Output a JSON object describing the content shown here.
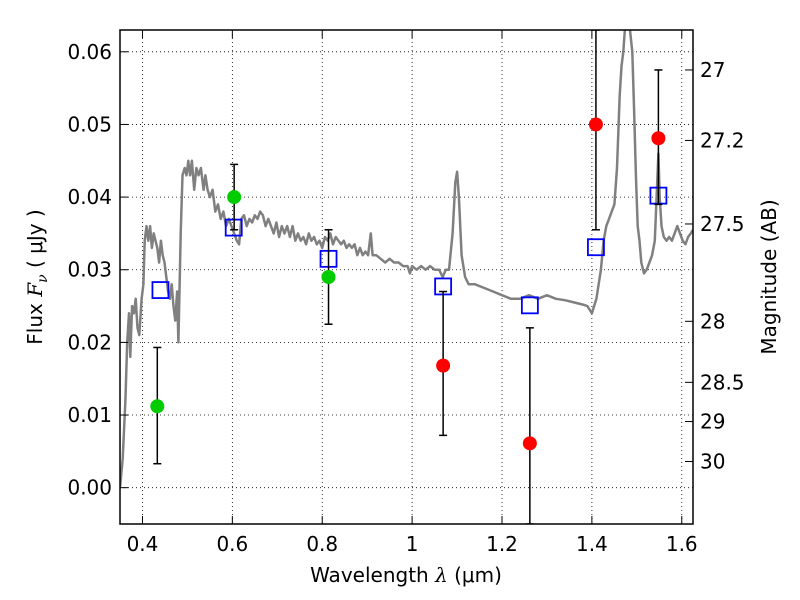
{
  "chart_data": {
    "type": "scatter",
    "xlabel": "Wavelength  λ (μm)",
    "xlabel_parts": {
      "prefix": "Wavelength  ",
      "symbol": "λ",
      "unit": " (μm)"
    },
    "ylabel": "Flux  Fν  ( μJy )",
    "ylabel_parts": {
      "prefix": "Flux  ",
      "symbol": "F",
      "sub": "ν",
      "unit": "  ( μJy )"
    },
    "y2label": "Magnitude (AB)",
    "xlim": [
      0.35,
      1.625
    ],
    "ylim": [
      -0.005,
      0.063
    ],
    "grid": true,
    "grid_style": "dotted",
    "x_ticks": [
      {
        "value": 0.4,
        "label": "0.4"
      },
      {
        "value": 0.6,
        "label": "0.6"
      },
      {
        "value": 0.8,
        "label": "0.8"
      },
      {
        "value": 1.0,
        "label": "1"
      },
      {
        "value": 1.2,
        "label": "1.2"
      },
      {
        "value": 1.4,
        "label": "1.4"
      },
      {
        "value": 1.6,
        "label": "1.6"
      }
    ],
    "y_ticks": [
      {
        "value": 0.0,
        "label": "0.00"
      },
      {
        "value": 0.01,
        "label": "0.01"
      },
      {
        "value": 0.02,
        "label": "0.02"
      },
      {
        "value": 0.03,
        "label": "0.03"
      },
      {
        "value": 0.04,
        "label": "0.04"
      },
      {
        "value": 0.05,
        "label": "0.05"
      },
      {
        "value": 0.06,
        "label": "0.06"
      }
    ],
    "y2_ticks": [
      {
        "label": "27",
        "flux": 0.0575
      },
      {
        "label": "27.2",
        "flux": 0.0478
      },
      {
        "label": "27.5",
        "flux": 0.0363
      },
      {
        "label": "28",
        "flux": 0.0229
      },
      {
        "label": "28.5",
        "flux": 0.0145
      },
      {
        "label": "29",
        "flux": 0.0091
      },
      {
        "label": "30",
        "flux": 0.0036
      }
    ],
    "series": [
      {
        "type": "line",
        "color": "#808080",
        "points": [
          [
            0.35,
            0.0
          ],
          [
            0.356,
            0.004
          ],
          [
            0.362,
            0.012
          ],
          [
            0.366,
            0.02
          ],
          [
            0.37,
            0.024
          ],
          [
            0.373,
            0.018
          ],
          [
            0.377,
            0.025
          ],
          [
            0.381,
            0.024
          ],
          [
            0.385,
            0.026
          ],
          [
            0.389,
            0.022
          ],
          [
            0.393,
            0.021
          ],
          [
            0.398,
            0.026
          ],
          [
            0.402,
            0.028
          ],
          [
            0.405,
            0.034
          ],
          [
            0.409,
            0.036
          ],
          [
            0.413,
            0.034
          ],
          [
            0.417,
            0.036
          ],
          [
            0.421,
            0.033
          ],
          [
            0.425,
            0.035
          ],
          [
            0.429,
            0.034
          ],
          [
            0.433,
            0.033
          ],
          [
            0.437,
            0.031
          ],
          [
            0.441,
            0.034
          ],
          [
            0.445,
            0.032
          ],
          [
            0.449,
            0.031
          ],
          [
            0.453,
            0.029
          ],
          [
            0.457,
            0.027
          ],
          [
            0.461,
            0.026
          ],
          [
            0.465,
            0.028
          ],
          [
            0.469,
            0.025
          ],
          [
            0.473,
            0.023
          ],
          [
            0.477,
            0.027
          ],
          [
            0.48,
            0.02
          ],
          [
            0.485,
            0.035
          ],
          [
            0.489,
            0.043
          ],
          [
            0.494,
            0.044
          ],
          [
            0.498,
            0.043
          ],
          [
            0.502,
            0.045
          ],
          [
            0.506,
            0.043
          ],
          [
            0.51,
            0.045
          ],
          [
            0.515,
            0.041
          ],
          [
            0.52,
            0.044
          ],
          [
            0.525,
            0.043
          ],
          [
            0.53,
            0.044
          ],
          [
            0.536,
            0.041
          ],
          [
            0.54,
            0.043
          ],
          [
            0.545,
            0.041
          ],
          [
            0.55,
            0.04
          ],
          [
            0.556,
            0.041
          ],
          [
            0.562,
            0.038
          ],
          [
            0.568,
            0.039
          ],
          [
            0.574,
            0.037
          ],
          [
            0.58,
            0.038
          ],
          [
            0.586,
            0.036
          ],
          [
            0.592,
            0.037
          ],
          [
            0.598,
            0.036
          ],
          [
            0.604,
            0.035
          ],
          [
            0.61,
            0.034
          ],
          [
            0.615,
            0.0335
          ],
          [
            0.62,
            0.037
          ],
          [
            0.626,
            0.0375
          ],
          [
            0.632,
            0.036
          ],
          [
            0.638,
            0.037
          ],
          [
            0.644,
            0.0365
          ],
          [
            0.65,
            0.0375
          ],
          [
            0.656,
            0.037
          ],
          [
            0.662,
            0.038
          ],
          [
            0.668,
            0.0375
          ],
          [
            0.674,
            0.036
          ],
          [
            0.68,
            0.037
          ],
          [
            0.686,
            0.036
          ],
          [
            0.692,
            0.035
          ],
          [
            0.698,
            0.0365
          ],
          [
            0.704,
            0.0345
          ],
          [
            0.71,
            0.036
          ],
          [
            0.716,
            0.035
          ],
          [
            0.722,
            0.036
          ],
          [
            0.728,
            0.0345
          ],
          [
            0.734,
            0.036
          ],
          [
            0.74,
            0.034
          ],
          [
            0.746,
            0.035
          ],
          [
            0.752,
            0.034
          ],
          [
            0.758,
            0.0345
          ],
          [
            0.764,
            0.0335
          ],
          [
            0.77,
            0.035
          ],
          [
            0.776,
            0.034
          ],
          [
            0.782,
            0.0345
          ],
          [
            0.788,
            0.0335
          ],
          [
            0.794,
            0.034
          ],
          [
            0.8,
            0.033
          ],
          [
            0.806,
            0.0345
          ],
          [
            0.812,
            0.034
          ],
          [
            0.818,
            0.035
          ],
          [
            0.824,
            0.0335
          ],
          [
            0.83,
            0.0345
          ],
          [
            0.836,
            0.034
          ],
          [
            0.842,
            0.0335
          ],
          [
            0.848,
            0.034
          ],
          [
            0.854,
            0.033
          ],
          [
            0.86,
            0.0335
          ],
          [
            0.866,
            0.033
          ],
          [
            0.872,
            0.0335
          ],
          [
            0.878,
            0.032
          ],
          [
            0.884,
            0.033
          ],
          [
            0.89,
            0.032
          ],
          [
            0.896,
            0.0325
          ],
          [
            0.902,
            0.032
          ],
          [
            0.908,
            0.035
          ],
          [
            0.912,
            0.032
          ],
          [
            0.92,
            0.032
          ],
          [
            0.93,
            0.0315
          ],
          [
            0.94,
            0.031
          ],
          [
            0.95,
            0.0315
          ],
          [
            0.96,
            0.031
          ],
          [
            0.97,
            0.031
          ],
          [
            0.98,
            0.0305
          ],
          [
            0.99,
            0.0305
          ],
          [
            0.995,
            0.0295
          ],
          [
            1.0,
            0.0305
          ],
          [
            1.01,
            0.03
          ],
          [
            1.02,
            0.0305
          ],
          [
            1.03,
            0.03
          ],
          [
            1.04,
            0.0305
          ],
          [
            1.05,
            0.03
          ],
          [
            1.06,
            0.03
          ],
          [
            1.068,
            0.029
          ],
          [
            1.075,
            0.03
          ],
          [
            1.082,
            0.03
          ],
          [
            1.09,
            0.035
          ],
          [
            1.096,
            0.042
          ],
          [
            1.1,
            0.0435
          ],
          [
            1.104,
            0.04
          ],
          [
            1.11,
            0.032
          ],
          [
            1.118,
            0.029
          ],
          [
            1.126,
            0.028
          ],
          [
            1.14,
            0.028
          ],
          [
            1.16,
            0.0275
          ],
          [
            1.18,
            0.027
          ],
          [
            1.2,
            0.0265
          ],
          [
            1.22,
            0.026
          ],
          [
            1.24,
            0.026
          ],
          [
            1.26,
            0.0265
          ],
          [
            1.28,
            0.026
          ],
          [
            1.3,
            0.0265
          ],
          [
            1.32,
            0.026
          ],
          [
            1.34,
            0.0258
          ],
          [
            1.36,
            0.0255
          ],
          [
            1.38,
            0.0252
          ],
          [
            1.39,
            0.025
          ],
          [
            1.4,
            0.024
          ],
          [
            1.41,
            0.026
          ],
          [
            1.42,
            0.03
          ],
          [
            1.426,
            0.034
          ],
          [
            1.432,
            0.036
          ],
          [
            1.438,
            0.037
          ],
          [
            1.444,
            0.038
          ],
          [
            1.45,
            0.039
          ],
          [
            1.456,
            0.044
          ],
          [
            1.462,
            0.054
          ],
          [
            1.466,
            0.058
          ],
          [
            1.47,
            0.06
          ],
          [
            1.474,
            0.0635
          ],
          [
            1.484,
            0.0635
          ],
          [
            1.49,
            0.06
          ],
          [
            1.494,
            0.052
          ],
          [
            1.498,
            0.043
          ],
          [
            1.502,
            0.036
          ],
          [
            1.506,
            0.034
          ],
          [
            1.51,
            0.031
          ],
          [
            1.516,
            0.0295
          ],
          [
            1.522,
            0.03
          ],
          [
            1.528,
            0.031
          ],
          [
            1.534,
            0.032
          ],
          [
            1.54,
            0.034
          ],
          [
            1.544,
            0.04
          ],
          [
            1.548,
            0.046
          ],
          [
            1.551,
            0.04
          ],
          [
            1.555,
            0.036
          ],
          [
            1.56,
            0.0345
          ],
          [
            1.566,
            0.034
          ],
          [
            1.572,
            0.0345
          ],
          [
            1.578,
            0.034
          ],
          [
            1.584,
            0.035
          ],
          [
            1.59,
            0.036
          ],
          [
            1.596,
            0.035
          ],
          [
            1.602,
            0.034
          ],
          [
            1.608,
            0.0335
          ],
          [
            1.614,
            0.0345
          ],
          [
            1.62,
            0.035
          ],
          [
            1.625,
            0.0355
          ]
        ]
      },
      {
        "type": "scatter",
        "marker": "square",
        "color": "#0000ff",
        "points": [
          [
            0.44,
            0.0272
          ],
          [
            0.603,
            0.0358
          ],
          [
            0.814,
            0.0315
          ],
          [
            1.069,
            0.0277
          ],
          [
            1.262,
            0.0251
          ],
          [
            1.409,
            0.0331
          ],
          [
            1.548,
            0.0402
          ]
        ]
      },
      {
        "type": "scatter",
        "marker": "circle",
        "color": "#00cc00",
        "points": [
          {
            "x": 0.433,
            "y": 0.0112,
            "err_low": 0.0033,
            "err_high": 0.0193
          },
          {
            "x": 0.604,
            "y": 0.04,
            "err_low": 0.0355,
            "err_high": 0.0445
          },
          {
            "x": 0.814,
            "y": 0.029,
            "err_low": 0.0225,
            "err_high": 0.0355
          }
        ]
      },
      {
        "type": "scatter",
        "marker": "circle",
        "color": "#ff0000",
        "points": [
          {
            "x": 1.069,
            "y": 0.0168,
            "err_low": 0.0072,
            "err_high": 0.027
          },
          {
            "x": 1.262,
            "y": 0.0061,
            "err_low": -0.005,
            "err_high": 0.022
          },
          {
            "x": 1.409,
            "y": 0.05,
            "err_low": 0.0355,
            "err_high": 0.063
          },
          {
            "x": 1.548,
            "y": 0.0481,
            "err_low": 0.039,
            "err_high": 0.0575
          }
        ]
      }
    ]
  }
}
